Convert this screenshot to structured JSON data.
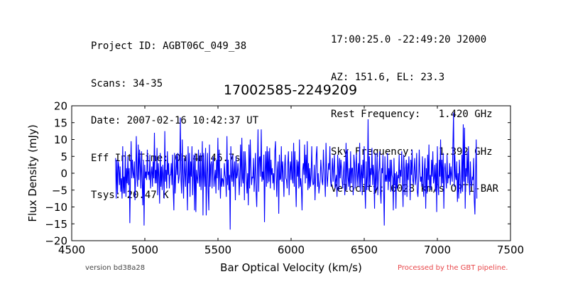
{
  "header_left": {
    "lines": [
      "Project ID: AGBT06C_049_38",
      "Scans: 34-35",
      "Date: 2007-02-16 10:42:37 UT",
      "Eff Int Time: 0h 4m 46.7s",
      "Tsys: 20.47 K"
    ]
  },
  "header_right": {
    "lines": [
      "17:00:25.0 -22:49:20 J2000",
      "AZ: 151.6, EL: 23.3",
      "Rest Frequency:   1.420 GHz",
      "Sky Frequency:    1.392 GHz",
      "Velocity: 6028 km/s OPTI-BAR"
    ]
  },
  "footer": {
    "version": "version bd38a28",
    "processed": "Processed by the GBT pipeline."
  },
  "colors": {
    "line": "#0000ff",
    "processed_text": "#e8474a",
    "version_text": "#444444"
  },
  "chart_data": {
    "type": "line",
    "title": "17002585-2249209",
    "xlabel": "Bar Optical Velocity (km/s)",
    "ylabel": "Flux Density (mJy)",
    "xlim": [
      4500,
      7500
    ],
    "ylim": [
      -20,
      20
    ],
    "xticks": [
      4500,
      5000,
      5500,
      6000,
      6500,
      7000,
      7500
    ],
    "yticks": [
      -20,
      -15,
      -10,
      -5,
      0,
      5,
      10,
      15,
      20
    ],
    "grid": false,
    "series": [
      {
        "x_start": 4800,
        "x_end": 7270,
        "values": [
          4.5,
          -7.5,
          4,
          -6,
          3.5,
          2,
          -3.5,
          2,
          -5.5,
          -1.5,
          -7.5,
          8,
          -6,
          -1,
          -6,
          6.5,
          -7,
          1.5,
          -3,
          5,
          -3.5,
          1.5,
          -14.8,
          -0.5,
          9.5,
          -1.5,
          4,
          0,
          -1.5,
          3.5,
          -8,
          -1,
          11,
          -0.5,
          -4,
          8.5,
          -2,
          7,
          2.5,
          -4.5,
          6.5,
          -2,
          -9.5,
          4,
          -15.5,
          2.5,
          -1.5,
          0.5,
          -2,
          7,
          -0.5,
          0.5,
          -2,
          5.5,
          -4.5,
          0,
          2,
          -4,
          3.5,
          -1.5,
          12,
          -3,
          1,
          -3,
          7.5,
          -6.5,
          3,
          -1,
          -9,
          6,
          -4,
          2,
          -5,
          2.5,
          -0.5,
          -7.5,
          12.5,
          -2.5,
          1,
          -4.5,
          6.5,
          -0.5,
          3,
          -4.5,
          -0.5,
          -0.5,
          3,
          -3.5,
          5.5,
          -5,
          -11,
          6,
          -6,
          0,
          5.5,
          -0.5,
          6,
          -3,
          -1.5,
          1,
          16.5,
          -2,
          -6,
          10,
          -0.5,
          -7.5,
          4.5,
          0.5,
          -4,
          5.5,
          -1.5,
          -11,
          8,
          -3,
          6,
          -7,
          3.5,
          -1,
          8,
          -6.5,
          -0.5,
          5.5,
          -11,
          6,
          -11.5,
          1,
          -1.5,
          -3,
          7,
          -0.5,
          -4,
          6,
          -5,
          -0.5,
          9.5,
          -12.5,
          6,
          -0.5,
          -4,
          7.5,
          -12.5,
          -0.5,
          6,
          -5,
          -11,
          8.5,
          -4,
          2.5,
          3.5,
          -4.5,
          2.5,
          5,
          -4,
          -1.5,
          1,
          -6,
          4,
          -1.5,
          10.5,
          -5,
          7,
          -1.5,
          -7.5,
          1.5,
          -4,
          -1.5,
          -2,
          -4,
          3,
          -0.5,
          -1.5,
          -7,
          11,
          -3.5,
          4,
          -5,
          -0.5,
          -16.7,
          8,
          -1,
          -2.5,
          5.5,
          -4,
          0.5,
          3.5,
          -8,
          5,
          -1.5,
          -0.5,
          3,
          0,
          -6.5,
          -0.5,
          8.5,
          -4,
          10.5,
          -1.5,
          -3,
          6.5,
          -8,
          6.5,
          2.5,
          -1.5,
          -6,
          0,
          -9.5,
          8.5,
          -4.5,
          10,
          2.5,
          -3.5,
          -1,
          -1.5,
          4.5,
          -5.5,
          -0.5,
          6,
          -5.5,
          -10,
          1.5,
          13,
          -5.5,
          4.5,
          5,
          -1,
          13,
          -2.5,
          0.5,
          -2,
          5.5,
          -14.5,
          0.5,
          6.5,
          -4,
          8,
          -3,
          6.5,
          -2.5,
          7.5,
          -4.5,
          4,
          -0.5,
          1.5,
          -3,
          0,
          -5,
          6.5,
          9.5,
          -0.5,
          -7,
          1,
          3.5,
          -12,
          5.5,
          -2,
          -1.5,
          8,
          -2.5,
          3.5,
          -0.5,
          -7,
          2,
          5.5,
          -1.5,
          -2,
          -4.5,
          3,
          6.5,
          -6.5,
          0.5,
          3.5,
          -2,
          6.5,
          -1.5,
          -3,
          9,
          -4,
          6.5,
          -2.5,
          -10,
          4,
          -1,
          3.5,
          -4.5,
          10,
          -4,
          -1.5,
          -4.5,
          -11,
          1,
          3,
          -0.5,
          8.5,
          -3,
          5.5,
          -1.5,
          9.5,
          -5,
          3,
          -4.5,
          1.5,
          -4,
          -0.5,
          8,
          -1.5,
          -3.5,
          -3,
          2.5,
          -8,
          -1.5,
          5.5,
          8,
          -4,
          0,
          -6,
          -4,
          -2,
          4,
          0.5,
          -2.5,
          -3.5,
          7,
          1.5,
          -1.5,
          -7,
          9,
          0.5,
          -4,
          -0.5,
          3,
          1,
          8,
          -2,
          -4,
          0.5,
          4.5,
          -2.5,
          1.5,
          5.5,
          -4.5,
          -2,
          -0.5,
          -7,
          5.5,
          1.5,
          -5,
          4.5,
          -1.5,
          4,
          1.5,
          -2.5,
          -4.5,
          0.5,
          3.5,
          -6.5,
          -1,
          9,
          -5,
          7,
          -1,
          -4,
          1.5,
          -5,
          6.5,
          -3,
          1.5,
          1.5,
          -6.5,
          5.5,
          3,
          -4.5,
          1.5,
          6,
          -4,
          -0.5,
          3,
          -4,
          9,
          -5.5,
          -0.5,
          2.5,
          -6.5,
          4,
          -1.5,
          8,
          -3.5,
          -10.5,
          3.5,
          -5,
          -1,
          16,
          -5,
          5,
          -4,
          1.5,
          -0.5,
          7.5,
          -3.5,
          2.5,
          -0.5,
          -10.5,
          6,
          -5,
          -1.5,
          6,
          -6.5,
          -0.5,
          1.5,
          6.5,
          -5.5,
          -9,
          1.5,
          0,
          5.5,
          -4.5,
          -15.5,
          5,
          -2.5,
          -0.5,
          -2.5,
          6,
          -5,
          1.5,
          -2.5,
          4,
          -5.5,
          4,
          -0.5,
          -1.5,
          -11,
          4.5,
          -3.5,
          0,
          -10.5,
          0.5,
          -4.5,
          -0.5,
          -1.5,
          5.5,
          -3,
          1,
          -1,
          6.5,
          -1.5,
          -10,
          5.5,
          1,
          -6.5,
          1.5,
          4,
          -7,
          3,
          -2,
          5,
          1,
          -8,
          4,
          -0.5,
          7,
          -2,
          -3.5,
          1,
          4.5,
          -3.5,
          -1,
          6,
          -5.5,
          -7,
          -2.5,
          7,
          0.5,
          -2.5,
          -1,
          -4,
          5,
          -3.5,
          -7,
          1.5,
          4.5,
          -10.5,
          1.5,
          -6,
          5.5,
          -2,
          8.5,
          -4.5,
          -0.5,
          -5,
          4,
          -1,
          6.5,
          -3,
          -1.5,
          2.5,
          -5.5,
          3,
          -11.5,
          8,
          -3.5,
          -6.5,
          4,
          -1,
          10,
          -4,
          4,
          -3,
          6,
          -10.5,
          1,
          3,
          -1,
          -4.5,
          5.5,
          -3,
          -0.5,
          -1.5,
          3,
          -3.5,
          2,
          -0.5,
          -2.5,
          8,
          18,
          -4,
          5.5,
          -1,
          -2,
          3.5,
          -8.5,
          0,
          -7.5,
          4,
          -0.5,
          -6,
          -4.5,
          5.5,
          -5.5,
          14.5,
          -2.5,
          13.5,
          -10.5,
          1.5,
          -1,
          6.5,
          -3,
          8,
          -2,
          -6.5,
          3.5,
          -2.5,
          -4,
          -1,
          -2,
          4.5,
          -8,
          -12.2,
          -0.5,
          10,
          -7.5
        ]
      }
    ]
  }
}
